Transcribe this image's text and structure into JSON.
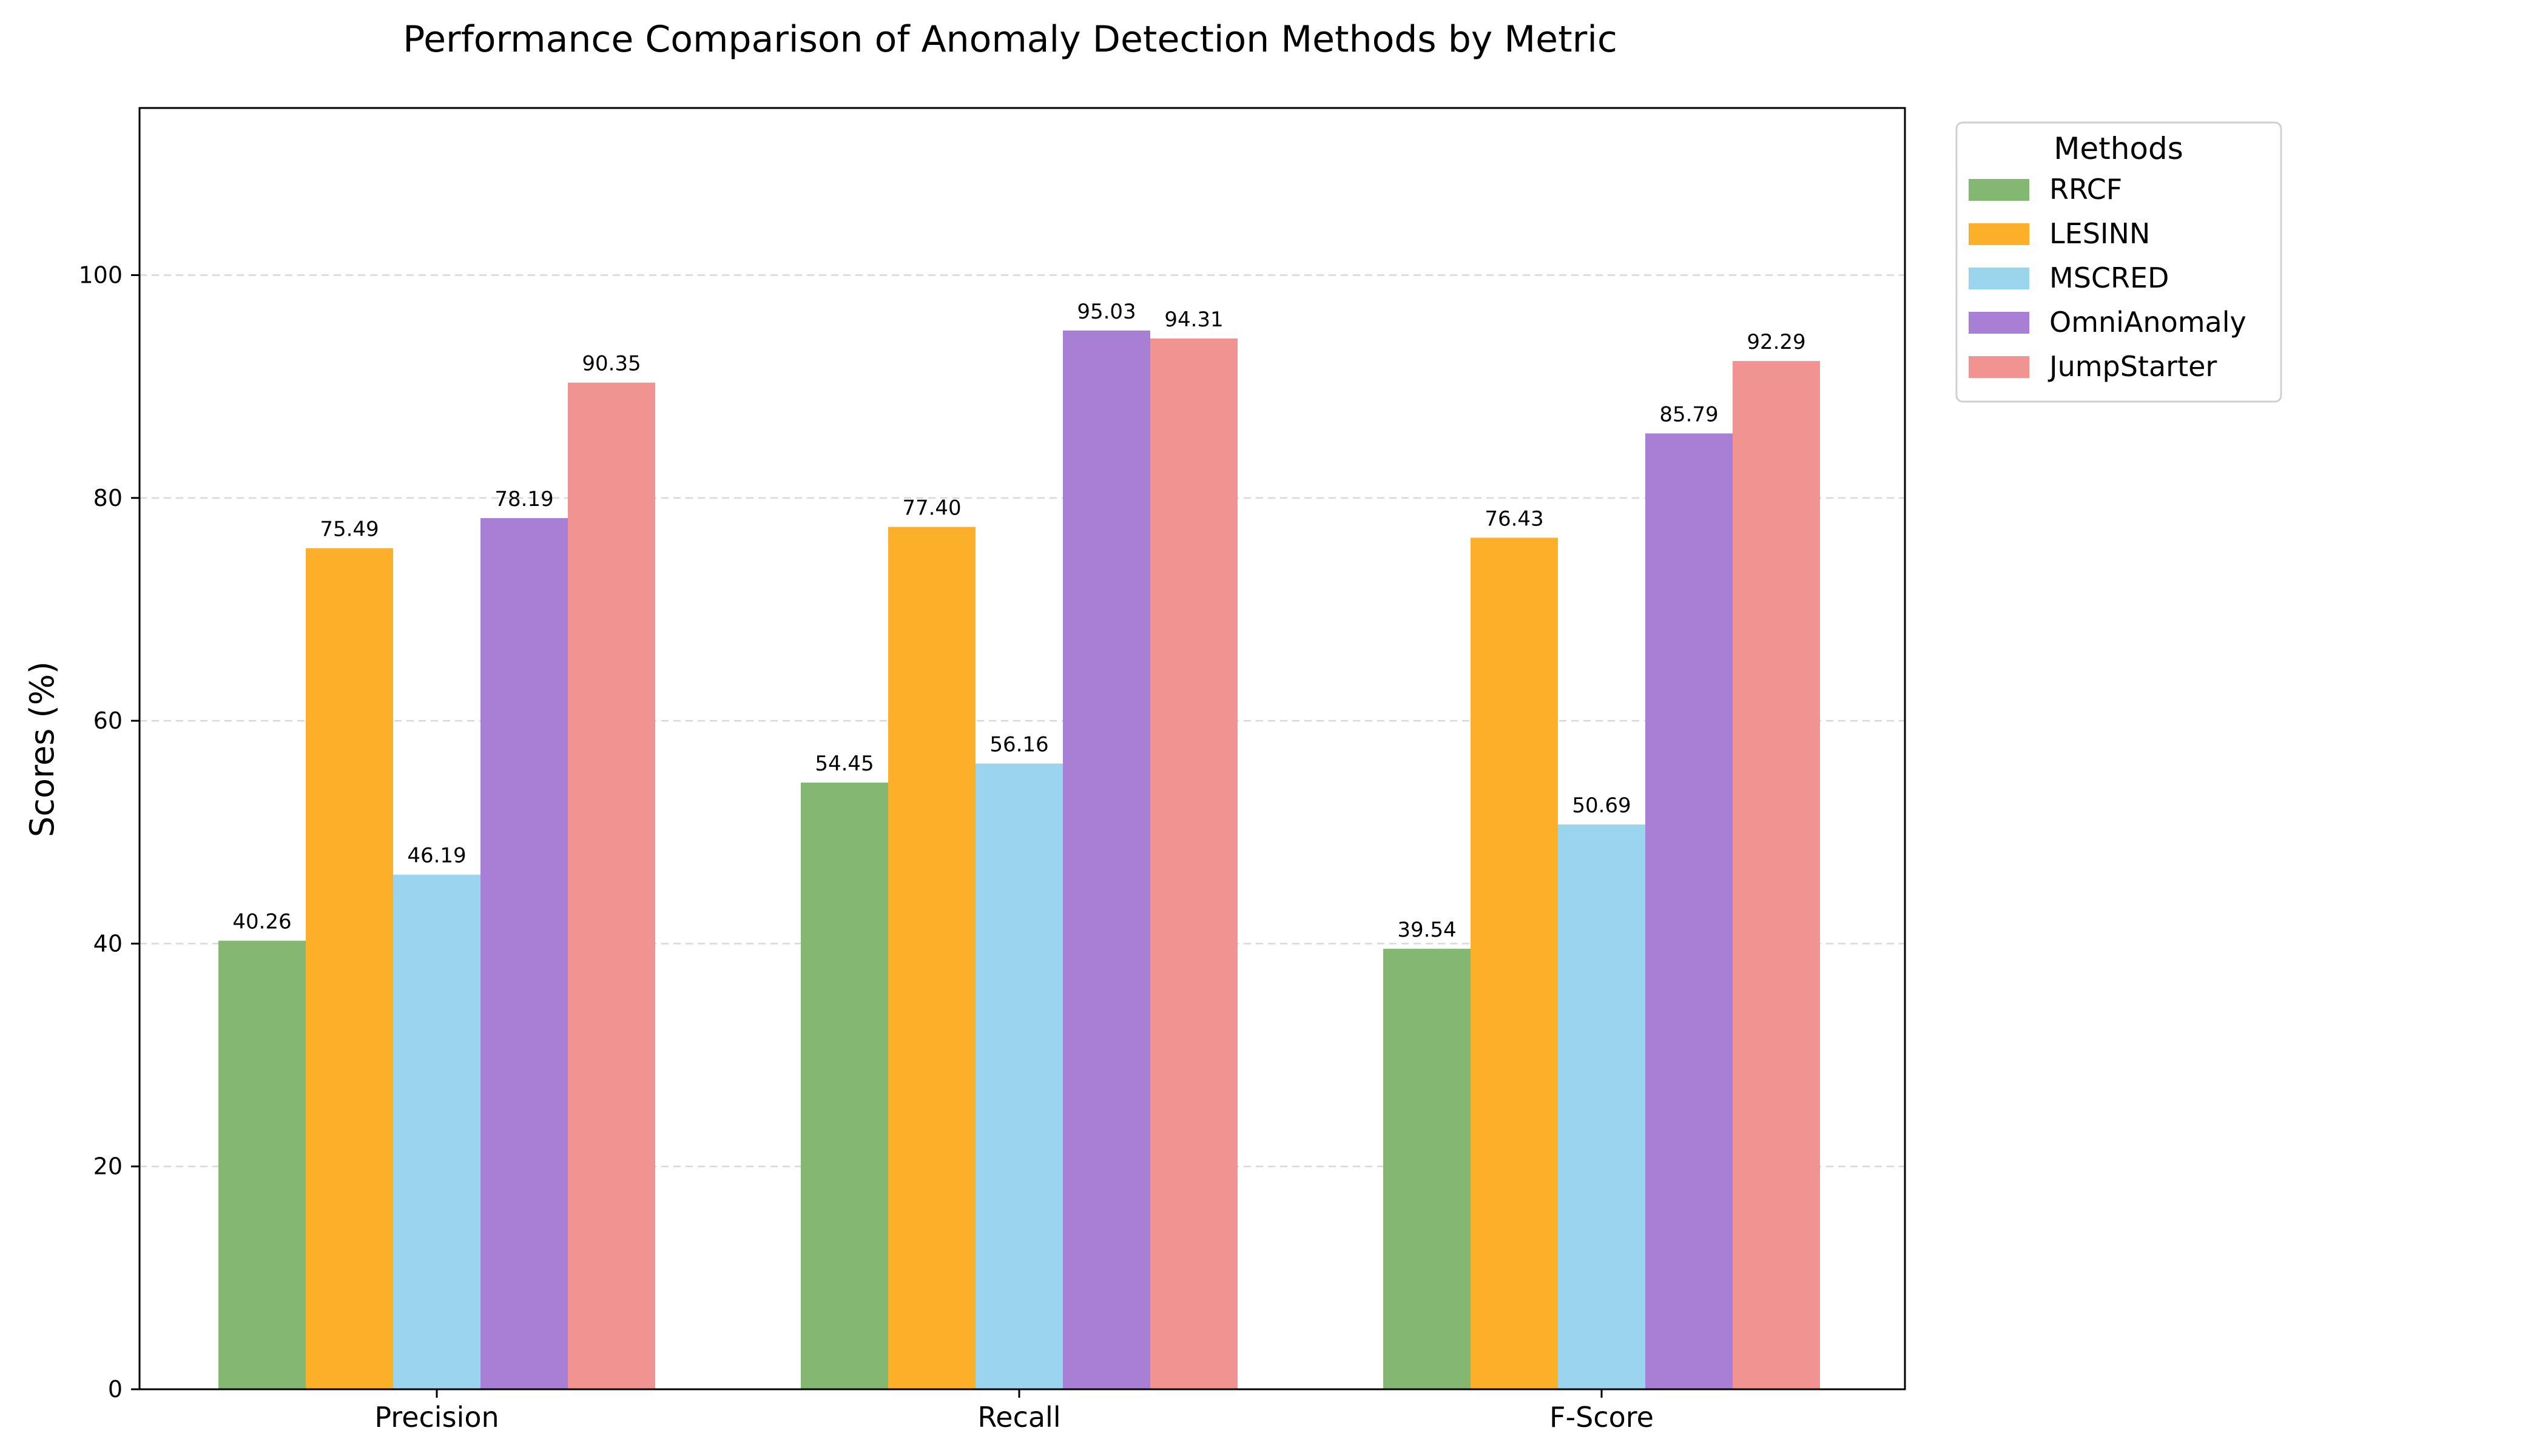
{
  "chart_data": {
    "type": "bar",
    "title": "Performance Comparison of Anomaly Detection Methods by Metric",
    "xlabel": "",
    "ylabel": "Scores (%)",
    "ylim": [
      0,
      115
    ],
    "yticks": [
      0,
      20,
      40,
      60,
      80,
      100
    ],
    "categories": [
      "Precision",
      "Recall",
      "F-Score"
    ],
    "grid": "y-dashed",
    "legend": {
      "title": "Methods",
      "placement": "outside-top-right"
    },
    "series": [
      {
        "name": "RRCF",
        "color": "#84b872",
        "values": [
          40.26,
          54.45,
          39.54
        ]
      },
      {
        "name": "LESINN",
        "color": "#fcb02a",
        "values": [
          75.49,
          77.4,
          76.43
        ]
      },
      {
        "name": "MSCRED",
        "color": "#9bd4ed",
        "values": [
          46.19,
          56.16,
          50.69
        ]
      },
      {
        "name": "OmniAnomaly",
        "color": "#a77fd4",
        "values": [
          78.19,
          95.03,
          85.79
        ]
      },
      {
        "name": "JumpStarter",
        "color": "#f09391",
        "values": [
          90.35,
          94.31,
          92.29
        ]
      }
    ]
  }
}
